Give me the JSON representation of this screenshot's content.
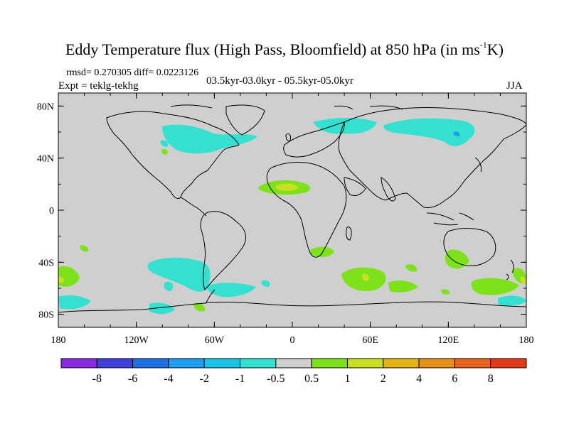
{
  "title": {
    "main": "Eddy Temperature flux (High Pass, Bloomfield) at 850 hPa (in ms",
    "superscript": "-1",
    "unit_tail": "K)"
  },
  "stats": "rmsd= 0.270305 diff= 0.0223126",
  "experiment": "Expt = teklg-tekhg",
  "period": "03.5kyr-03.0kyr - 05.5kyr-05.0kyr",
  "season": "JJA",
  "axes": {
    "y_ticks": [
      "80N",
      "40N",
      "0",
      "40S",
      "80S"
    ],
    "x_ticks": [
      "180",
      "120W",
      "60W",
      "0",
      "60E",
      "120E",
      "180"
    ]
  },
  "colorbar": {
    "labels": [
      "-8",
      "-6",
      "-4",
      "-2",
      "-1",
      "-0.5",
      "0.5",
      "1",
      "2",
      "4",
      "6",
      "8"
    ],
    "colors": [
      "#8a2be2",
      "#3f3fdc",
      "#1e6ee6",
      "#1e9ef0",
      "#19c3e6",
      "#34e0d0",
      "#cfcfcf",
      "#7ee21a",
      "#c8e020",
      "#e3b414",
      "#e6901a",
      "#e8641e",
      "#e43a1a"
    ]
  },
  "colors": {
    "land_background": "#cfcfcf",
    "coastline": "#000000",
    "cyan": "#34e0d0",
    "green": "#7ee21a",
    "yellow": "#c8e020"
  }
}
